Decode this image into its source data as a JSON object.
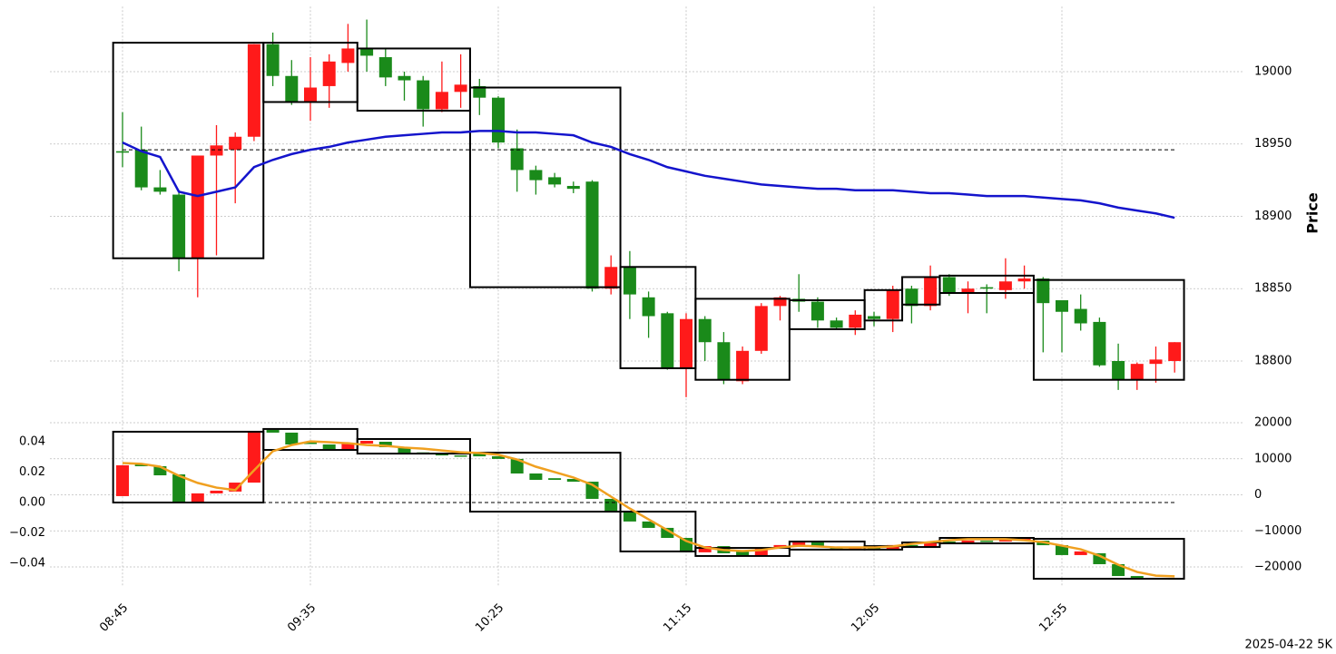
{
  "chart_data": [
    {
      "type": "candlestick",
      "ylabel": "Price",
      "ylim": [
        18765,
        19045
      ],
      "yticks": [
        18800,
        18850,
        18900,
        18950,
        19000
      ],
      "grid": true,
      "up_color": "#ff1a1a",
      "down_color": "#1a8a1a",
      "open": [
        18945,
        18946,
        18920,
        18915,
        18871,
        18942,
        18946,
        18955,
        19019,
        18997,
        18979,
        18990,
        19006,
        19016,
        19010,
        18997,
        18994,
        18974,
        18986,
        18990,
        18982,
        18947,
        18932,
        18927,
        18921,
        18924,
        18850,
        18865,
        18844,
        18833,
        18795,
        18829,
        18813,
        18786,
        18807,
        18838,
        18843,
        18841,
        18828,
        18823,
        18831,
        18829,
        18850,
        18838,
        18858,
        18847,
        18851,
        18849,
        18855,
        18857,
        18842,
        18836,
        18827,
        18800,
        18787,
        18798,
        18800
      ],
      "high": [
        18972,
        18962,
        18932,
        18918,
        18942,
        18963,
        18958,
        19019,
        19027,
        19008,
        19010,
        19012,
        19033,
        19036,
        19016,
        19000,
        18997,
        19007,
        19012,
        18995,
        18983,
        18960,
        18935,
        18930,
        18924,
        18925,
        18873,
        18876,
        18848,
        18834,
        18833,
        18831,
        18820,
        18810,
        18840,
        18845,
        18860,
        18844,
        18830,
        18835,
        18834,
        18852,
        18852,
        18866,
        18860,
        18855,
        18853,
        18871,
        18866,
        18858,
        18842,
        18846,
        18830,
        18812,
        18799,
        18810,
        18813
      ],
      "low": [
        18934,
        18918,
        18915,
        18862,
        18844,
        18873,
        18909,
        18952,
        18990,
        18977,
        18966,
        18975,
        19000,
        19000,
        18990,
        18980,
        18962,
        18972,
        18975,
        18970,
        18947,
        18917,
        18915,
        18920,
        18916,
        18848,
        18846,
        18829,
        18816,
        18794,
        18775,
        18800,
        18784,
        18784,
        18805,
        18828,
        18834,
        18823,
        18822,
        18818,
        18824,
        18820,
        18826,
        18835,
        18845,
        18833,
        18833,
        18843,
        18850,
        18806,
        18806,
        18821,
        18796,
        18780,
        18780,
        18785,
        18792
      ],
      "close": [
        18944,
        18920,
        18917,
        18871,
        18942,
        18949,
        18955,
        19019,
        18997,
        18979,
        18989,
        19007,
        19016,
        19011,
        18996,
        18994,
        18974,
        18986,
        18991,
        18982,
        18951,
        18932,
        18925,
        18922,
        18919,
        18850,
        18865,
        18846,
        18831,
        18795,
        18829,
        18813,
        18787,
        18807,
        18838,
        18844,
        18841,
        18828,
        18823,
        18832,
        18829,
        18849,
        18838,
        18858,
        18847,
        18850,
        18850,
        18855,
        18857,
        18840,
        18834,
        18826,
        18797,
        18787,
        18798,
        18801,
        18813
      ],
      "line": {
        "color": "#1414cc",
        "values": [
          18951,
          18945,
          18941,
          18917,
          18914,
          18917,
          18920,
          18934,
          18939,
          18943,
          18946,
          18948,
          18951,
          18953,
          18955,
          18956,
          18957,
          18958,
          18958,
          18959,
          18959,
          18958,
          18958,
          18957,
          18956,
          18951,
          18948,
          18943,
          18939,
          18934,
          18931,
          18928,
          18926,
          18924,
          18922,
          18921,
          18920,
          18919,
          18919,
          18918,
          18918,
          18918,
          18917,
          18916,
          18916,
          18915,
          18914,
          18914,
          18914,
          18913,
          18912,
          18911,
          18909,
          18906,
          18904,
          18902,
          18899
        ]
      },
      "hline": 18946,
      "boxes": [
        {
          "from": 0,
          "to": 7,
          "high": 19020,
          "low": 18871
        },
        {
          "from": 8,
          "to": 12,
          "high": 19020,
          "low": 18979
        },
        {
          "from": 13,
          "to": 18,
          "high": 19016,
          "low": 18973
        },
        {
          "from": 19,
          "to": 26,
          "high": 18989,
          "low": 18851
        },
        {
          "from": 27,
          "to": 30,
          "high": 18865,
          "low": 18795
        },
        {
          "from": 31,
          "to": 35,
          "high": 18843,
          "low": 18787
        },
        {
          "from": 36,
          "to": 39,
          "high": 18842,
          "low": 18822
        },
        {
          "from": 40,
          "to": 41,
          "high": 18849,
          "low": 18828
        },
        {
          "from": 42,
          "to": 43,
          "high": 18858,
          "low": 18839
        },
        {
          "from": 44,
          "to": 48,
          "high": 18859,
          "low": 18847
        },
        {
          "from": 49,
          "to": 56,
          "high": 18856,
          "low": 18787
        }
      ]
    },
    {
      "type": "candlestick",
      "categories": [
        "08:45",
        null,
        null,
        null,
        null,
        null,
        null,
        null,
        null,
        null,
        "09:35",
        null,
        null,
        null,
        null,
        null,
        null,
        null,
        null,
        null,
        "10:25",
        null,
        null,
        null,
        null,
        null,
        null,
        null,
        null,
        null,
        "11:15",
        null,
        null,
        null,
        null,
        null,
        null,
        null,
        null,
        null,
        "12:05",
        null,
        null,
        null,
        null,
        null,
        null,
        null,
        null,
        null,
        "12:55",
        null,
        null,
        null,
        null,
        null,
        null
      ],
      "ylim": [
        -0.055,
        0.056
      ],
      "yticks": [
        0.04,
        0.02,
        {
          "value": 0,
          "label": "0.00"
        },
        {
          "value": -0.02,
          "label": "−0.02"
        },
        {
          "value": -0.04,
          "label": "−0.04"
        }
      ],
      "y2lim": [
        -25300,
        21460
      ],
      "y2ticks": [
        20000,
        10000,
        0,
        {
          "value": -10000,
          "label": "−10000"
        },
        {
          "value": -20000,
          "label": "−20000"
        }
      ],
      "grid": true,
      "up_color": "#ff1a1a",
      "down_color": "#1a8a1a",
      "open": [
        0.0042,
        0.0251,
        0.0239,
        0.0185,
        0,
        0.006,
        0.0072,
        0.0131,
        0.0478,
        0.046,
        0.04,
        0.0382,
        0.0352,
        0.0388,
        0.04,
        0.0364,
        0.033,
        0.0322,
        0.031,
        0.0322,
        0.0304,
        0.0287,
        0.0191,
        0.016,
        0.0155,
        0.0137,
        0.0024,
        -0.006,
        -0.0125,
        -0.0167,
        -0.0233,
        -0.0328,
        -0.0287,
        -0.0316,
        -0.0352,
        -0.0304,
        -0.028,
        -0.0263,
        -0.0293,
        -0.0304,
        -0.0299,
        -0.031,
        -0.028,
        -0.0293,
        -0.0257,
        -0.0269,
        -0.0251,
        -0.0257,
        -0.0245,
        -0.0251,
        -0.0281,
        -0.0346,
        -0.0334,
        -0.0406,
        -0.0484,
        -0.0496,
        -0.0499
      ],
      "close": [
        0.0245,
        0.0239,
        0.0179,
        0,
        0.006,
        0.0078,
        0.0131,
        0.0466,
        0.046,
        0.0382,
        0.0385,
        0.0352,
        0.0388,
        0.0406,
        0.0364,
        0.0328,
        0.0322,
        0.031,
        0.0304,
        0.0304,
        0.0287,
        0.0191,
        0.0149,
        0.0149,
        0.0137,
        0.0024,
        -0.006,
        -0.0125,
        -0.0167,
        -0.0233,
        -0.0328,
        -0.0287,
        -0.0334,
        -0.0352,
        -0.0304,
        -0.028,
        -0.0263,
        -0.0293,
        -0.0304,
        -0.0293,
        -0.031,
        -0.028,
        -0.0293,
        -0.0263,
        -0.0269,
        -0.0251,
        -0.0257,
        -0.0245,
        -0.0239,
        -0.0281,
        -0.0346,
        -0.0322,
        -0.0406,
        -0.0484,
        -0.0496,
        -0.0499,
        -0.0502
      ],
      "line": {
        "color": "#f0a020",
        "axis": "y2",
        "values": [
          8800,
          8600,
          7800,
          5300,
          3300,
          2000,
          1300,
          6800,
          12100,
          13800,
          14800,
          14600,
          14300,
          13800,
          13600,
          13100,
          12800,
          12300,
          11800,
          11600,
          11100,
          9800,
          7800,
          6300,
          4800,
          2800,
          -500,
          -3800,
          -6800,
          -9800,
          -12800,
          -14600,
          -15300,
          -15600,
          -15300,
          -14600,
          -14100,
          -14300,
          -14600,
          -14600,
          -14600,
          -14300,
          -13600,
          -13100,
          -12600,
          -12300,
          -12300,
          -12300,
          -12600,
          -13100,
          -14100,
          -15100,
          -16900,
          -19400,
          -21400,
          -22400,
          -22600
        ]
      },
      "hline": 0,
      "boxes": [
        {
          "from": 0,
          "to": 7,
          "high": 0.0466,
          "low": 0
        },
        {
          "from": 8,
          "to": 12,
          "high": 0.0484,
          "low": 0.0346
        },
        {
          "from": 13,
          "to": 18,
          "high": 0.0418,
          "low": 0.0322
        },
        {
          "from": 19,
          "to": 26,
          "high": 0.0328,
          "low": -0.006
        },
        {
          "from": 27,
          "to": 30,
          "high": -0.006,
          "low": -0.0322
        },
        {
          "from": 31,
          "to": 35,
          "high": -0.0299,
          "low": -0.0352
        },
        {
          "from": 36,
          "to": 39,
          "high": -0.0257,
          "low": -0.031
        },
        {
          "from": 40,
          "to": 41,
          "high": -0.0287,
          "low": -0.031
        },
        {
          "from": 42,
          "to": 43,
          "high": -0.0263,
          "low": -0.0293
        },
        {
          "from": 44,
          "to": 48,
          "high": -0.0233,
          "low": -0.0269
        },
        {
          "from": 49,
          "to": 56,
          "high": -0.0239,
          "low": -0.0502
        }
      ]
    }
  ],
  "caption": "2025-04-22 5K"
}
